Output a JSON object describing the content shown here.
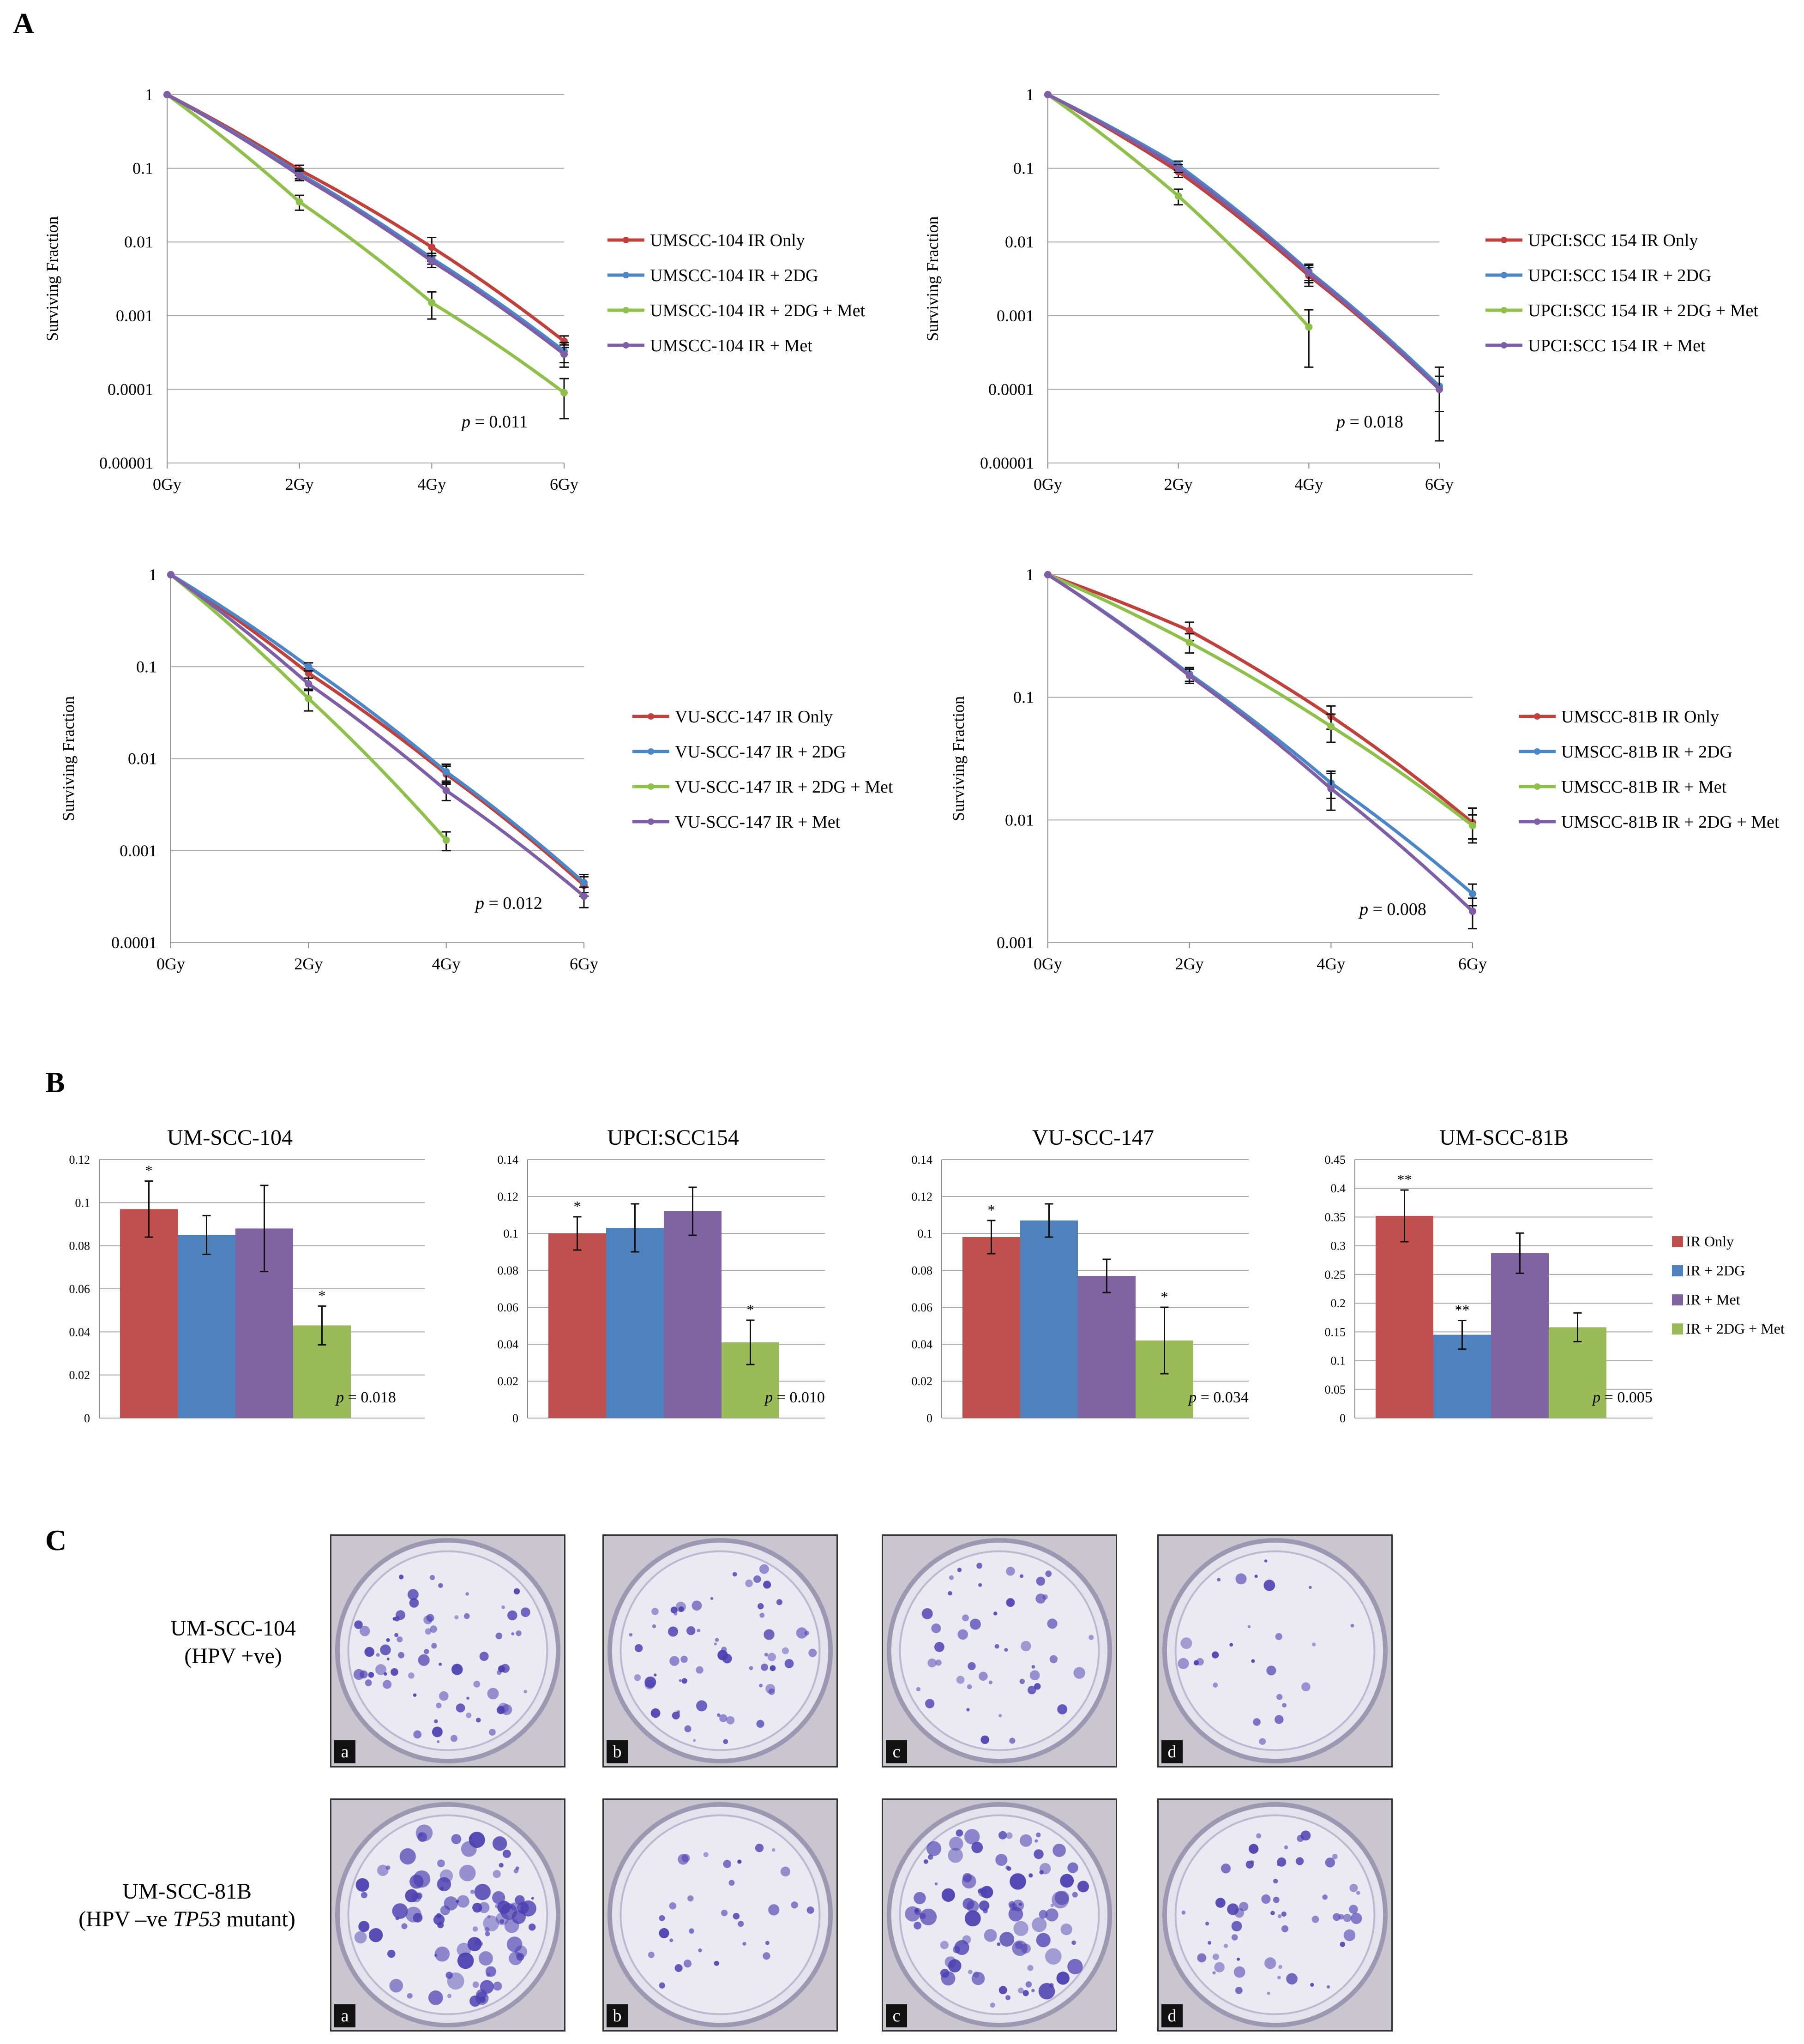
{
  "panel_letters": {
    "a": "A",
    "b": "B",
    "c": "C"
  },
  "chart_data": [
    {
      "id": "A1",
      "type": "line",
      "yscale": "log",
      "ylabel": "Surviving Fraction",
      "categories": [
        "0Gy",
        "2Gy",
        "4Gy",
        "6Gy"
      ],
      "yticks": [
        1,
        0.1,
        0.01,
        0.001,
        0.0001,
        1e-05
      ],
      "ytick_labels": [
        "1",
        "0.1",
        "0.01",
        "0.001",
        "0.0001",
        "0.00001"
      ],
      "ylim": [
        1e-05,
        1
      ],
      "series": [
        {
          "name": "UMSCC-104 IR Only",
          "values": [
            1,
            0.095,
            0.0085,
            0.00045
          ],
          "err": [
            0,
            0.015,
            0.003,
            8e-05
          ]
        },
        {
          "name": "UMSCC-104 IR + 2DG",
          "values": [
            1,
            0.085,
            0.006,
            0.00033
          ],
          "err": [
            0,
            0.013,
            0.001,
            0.0001
          ]
        },
        {
          "name": "UMSCC-104 IR + 2DG + Met",
          "values": [
            1,
            0.035,
            0.0015,
            9e-05
          ],
          "err": [
            0,
            0.008,
            0.0006,
            5e-05
          ]
        },
        {
          "name": "UMSCC-104 IR + Met",
          "values": [
            1,
            0.08,
            0.0055,
            0.0003
          ],
          "err": [
            0,
            0.012,
            0.001,
            0.0001
          ]
        }
      ],
      "p_prefix": "p",
      "p_value": " = 0.011"
    },
    {
      "id": "A2",
      "type": "line",
      "yscale": "log",
      "ylabel": "Surviving Fraction",
      "categories": [
        "0Gy",
        "2Gy",
        "4Gy",
        "6Gy"
      ],
      "yticks": [
        1,
        0.1,
        0.01,
        0.001,
        0.0001,
        1e-05
      ],
      "ytick_labels": [
        "1",
        "0.1",
        "0.01",
        "0.001",
        "0.0001",
        "0.00001"
      ],
      "ylim": [
        1e-05,
        1
      ],
      "series": [
        {
          "name": "UPCI:SCC 154 IR Only",
          "values": [
            1,
            0.09,
            0.0035,
            0.0001
          ],
          "err": [
            0,
            0.015,
            0.001,
            5e-05
          ]
        },
        {
          "name": "UPCI:SCC 154 IR + 2DG",
          "values": [
            1,
            0.11,
            0.004,
            0.00011
          ],
          "err": [
            0,
            0.015,
            0.001,
            9e-05
          ]
        },
        {
          "name": "UPCI:SCC 154 IR + 2DG + Met",
          "values": [
            1,
            0.042,
            0.0007,
            null
          ],
          "err": [
            0,
            0.01,
            0.0005,
            0
          ]
        },
        {
          "name": "UPCI:SCC 154 IR + Met",
          "values": [
            1,
            0.1,
            0.0038,
            0.0001
          ],
          "err": [
            0,
            0.012,
            0.001,
            5e-05
          ]
        }
      ],
      "p_prefix": "p",
      "p_value": " = 0.018"
    },
    {
      "id": "A3",
      "type": "line",
      "yscale": "log",
      "ylabel": "Surviving Fraction",
      "categories": [
        "0Gy",
        "2Gy",
        "4Gy",
        "6Gy"
      ],
      "yticks": [
        1,
        0.1,
        0.01,
        0.001,
        0.0001
      ],
      "ytick_labels": [
        "1",
        "0.1",
        "0.01",
        "0.001",
        "0.0001"
      ],
      "ylim": [
        0.0001,
        1
      ],
      "series": [
        {
          "name": "VU-SCC-147 IR Only",
          "values": [
            1,
            0.085,
            0.0068,
            0.00042
          ],
          "err": [
            0,
            0.01,
            0.0015,
            0.0001
          ]
        },
        {
          "name": "VU-SCC-147 IR + 2DG",
          "values": [
            1,
            0.1,
            0.0072,
            0.00045
          ],
          "err": [
            0,
            0.01,
            0.0015,
            0.0001
          ]
        },
        {
          "name": "VU-SCC-147 IR + 2DG + Met",
          "values": [
            1,
            0.045,
            0.0013,
            null
          ],
          "err": [
            0,
            0.012,
            0.0003,
            0
          ]
        },
        {
          "name": "VU-SCC-147 IR + Met",
          "values": [
            1,
            0.065,
            0.0045,
            0.00032
          ],
          "err": [
            0,
            0.01,
            0.001,
            8e-05
          ]
        }
      ],
      "p_prefix": "p",
      "p_value": " = 0.012"
    },
    {
      "id": "A4",
      "type": "line",
      "yscale": "log",
      "ylabel": "Surviving Fraction",
      "categories": [
        "0Gy",
        "2Gy",
        "4Gy",
        "6Gy"
      ],
      "yticks": [
        1,
        0.1,
        0.01,
        0.001
      ],
      "ytick_labels": [
        "1",
        "0.1",
        "0.01",
        "0.001"
      ],
      "ylim": [
        0.001,
        1
      ],
      "series": [
        {
          "name": "UMSCC-81B IR Only",
          "values": [
            1,
            0.35,
            0.07,
            0.0095
          ],
          "err": [
            0,
            0.06,
            0.015,
            0.003
          ]
        },
        {
          "name": "UMSCC-81B IR + 2DG",
          "values": [
            1,
            0.155,
            0.02,
            0.0025
          ],
          "err": [
            0,
            0.02,
            0.005,
            0.0005
          ]
        },
        {
          "name": "UMSCC-81B IR + Met",
          "values": [
            1,
            0.28,
            0.058,
            0.009
          ],
          "err": [
            0,
            0.05,
            0.015,
            0.002
          ]
        },
        {
          "name": "UMSCC-81B IR + 2DG + Met",
          "values": [
            1,
            0.15,
            0.018,
            0.0018
          ],
          "err": [
            0,
            0.02,
            0.006,
            0.0005
          ]
        }
      ],
      "p_prefix": "p",
      "p_value": " = 0.008"
    },
    {
      "id": "B1",
      "type": "bar",
      "title": "UM-SCC-104",
      "categories": [
        "IR Only",
        "IR + 2DG",
        "IR + Met",
        "IR + 2DG + Met"
      ],
      "values": [
        0.097,
        0.085,
        0.088,
        0.043
      ],
      "err": [
        0.013,
        0.009,
        0.02,
        0.009
      ],
      "stars": [
        "*",
        "",
        "",
        "*"
      ],
      "yticks": [
        0,
        0.02,
        0.04,
        0.06,
        0.08,
        0.1,
        0.12
      ],
      "ytick_labels": [
        "0",
        "0.02",
        "0.04",
        "0.06",
        "0.08",
        "0.1",
        "0.12"
      ],
      "ylim": [
        0,
        0.12
      ],
      "p_prefix": "p",
      "p_value": " = 0.018"
    },
    {
      "id": "B2",
      "type": "bar",
      "title": "UPCI:SCC154",
      "categories": [
        "IR Only",
        "IR + 2DG",
        "IR + Met",
        "IR + 2DG + Met"
      ],
      "values": [
        0.1,
        0.103,
        0.112,
        0.041
      ],
      "err": [
        0.009,
        0.013,
        0.013,
        0.012
      ],
      "stars": [
        "*",
        "",
        "",
        "*"
      ],
      "yticks": [
        0,
        0.02,
        0.04,
        0.06,
        0.08,
        0.1,
        0.12,
        0.14
      ],
      "ytick_labels": [
        "0",
        "0.02",
        "0.04",
        "0.06",
        "0.08",
        "0.1",
        "0.12",
        "0.14"
      ],
      "ylim": [
        0,
        0.14
      ],
      "p_prefix": "p",
      "p_value": " = 0.010"
    },
    {
      "id": "B3",
      "type": "bar",
      "title": "VU-SCC-147",
      "categories": [
        "IR Only",
        "IR + 2DG",
        "IR + Met",
        "IR + 2DG + Met"
      ],
      "values": [
        0.098,
        0.107,
        0.077,
        0.042
      ],
      "err": [
        0.009,
        0.009,
        0.009,
        0.018
      ],
      "stars": [
        "*",
        "",
        "",
        "*"
      ],
      "yticks": [
        0,
        0.02,
        0.04,
        0.06,
        0.08,
        0.1,
        0.12,
        0.14
      ],
      "ytick_labels": [
        "0",
        "0.02",
        "0.04",
        "0.06",
        "0.08",
        "0.1",
        "0.12",
        "0.14"
      ],
      "ylim": [
        0,
        0.14
      ],
      "p_prefix": "p",
      "p_value": " = 0.034"
    },
    {
      "id": "B4",
      "type": "bar",
      "title": "UM-SCC-81B",
      "categories": [
        "IR Only",
        "IR + 2DG",
        "IR + Met",
        "IR + 2DG + Met"
      ],
      "values": [
        0.352,
        0.145,
        0.287,
        0.158
      ],
      "err": [
        0.045,
        0.025,
        0.035,
        0.025
      ],
      "stars": [
        "**",
        "**",
        "",
        ""
      ],
      "yticks": [
        0,
        0.05,
        0.1,
        0.15,
        0.2,
        0.25,
        0.3,
        0.35,
        0.4,
        0.45
      ],
      "ytick_labels": [
        "0",
        "0.05",
        "0.1",
        "0.15",
        "0.2",
        "0.25",
        "0.3",
        "0.35",
        "0.4",
        "0.45"
      ],
      "ylim": [
        0,
        0.45
      ],
      "p_prefix": "p",
      "p_value": " = 0.005",
      "legend": [
        "IR Only",
        "IR + 2DG",
        "IR + Met",
        "IR + 2DG + Met"
      ]
    }
  ],
  "colors": {
    "line": [
      "#c0413b",
      "#4a86c8",
      "#8fc04c",
      "#7e5fa6"
    ],
    "bar": [
      "#c0504d",
      "#4f81bd",
      "#8064a2",
      "#9bbb59"
    ],
    "grid": "#a8a8a8",
    "axis": "#888888"
  },
  "panel_c": {
    "rows": [
      {
        "name": "UM-SCC-104",
        "sub": "(HPV +ve)"
      },
      {
        "name": "UM-SCC-81B",
        "sub_before": "(HPV –ve ",
        "sub_italic": "TP53",
        "sub_after": " mutant)"
      }
    ],
    "plate_labels": [
      "a",
      "b",
      "c",
      "d"
    ]
  }
}
